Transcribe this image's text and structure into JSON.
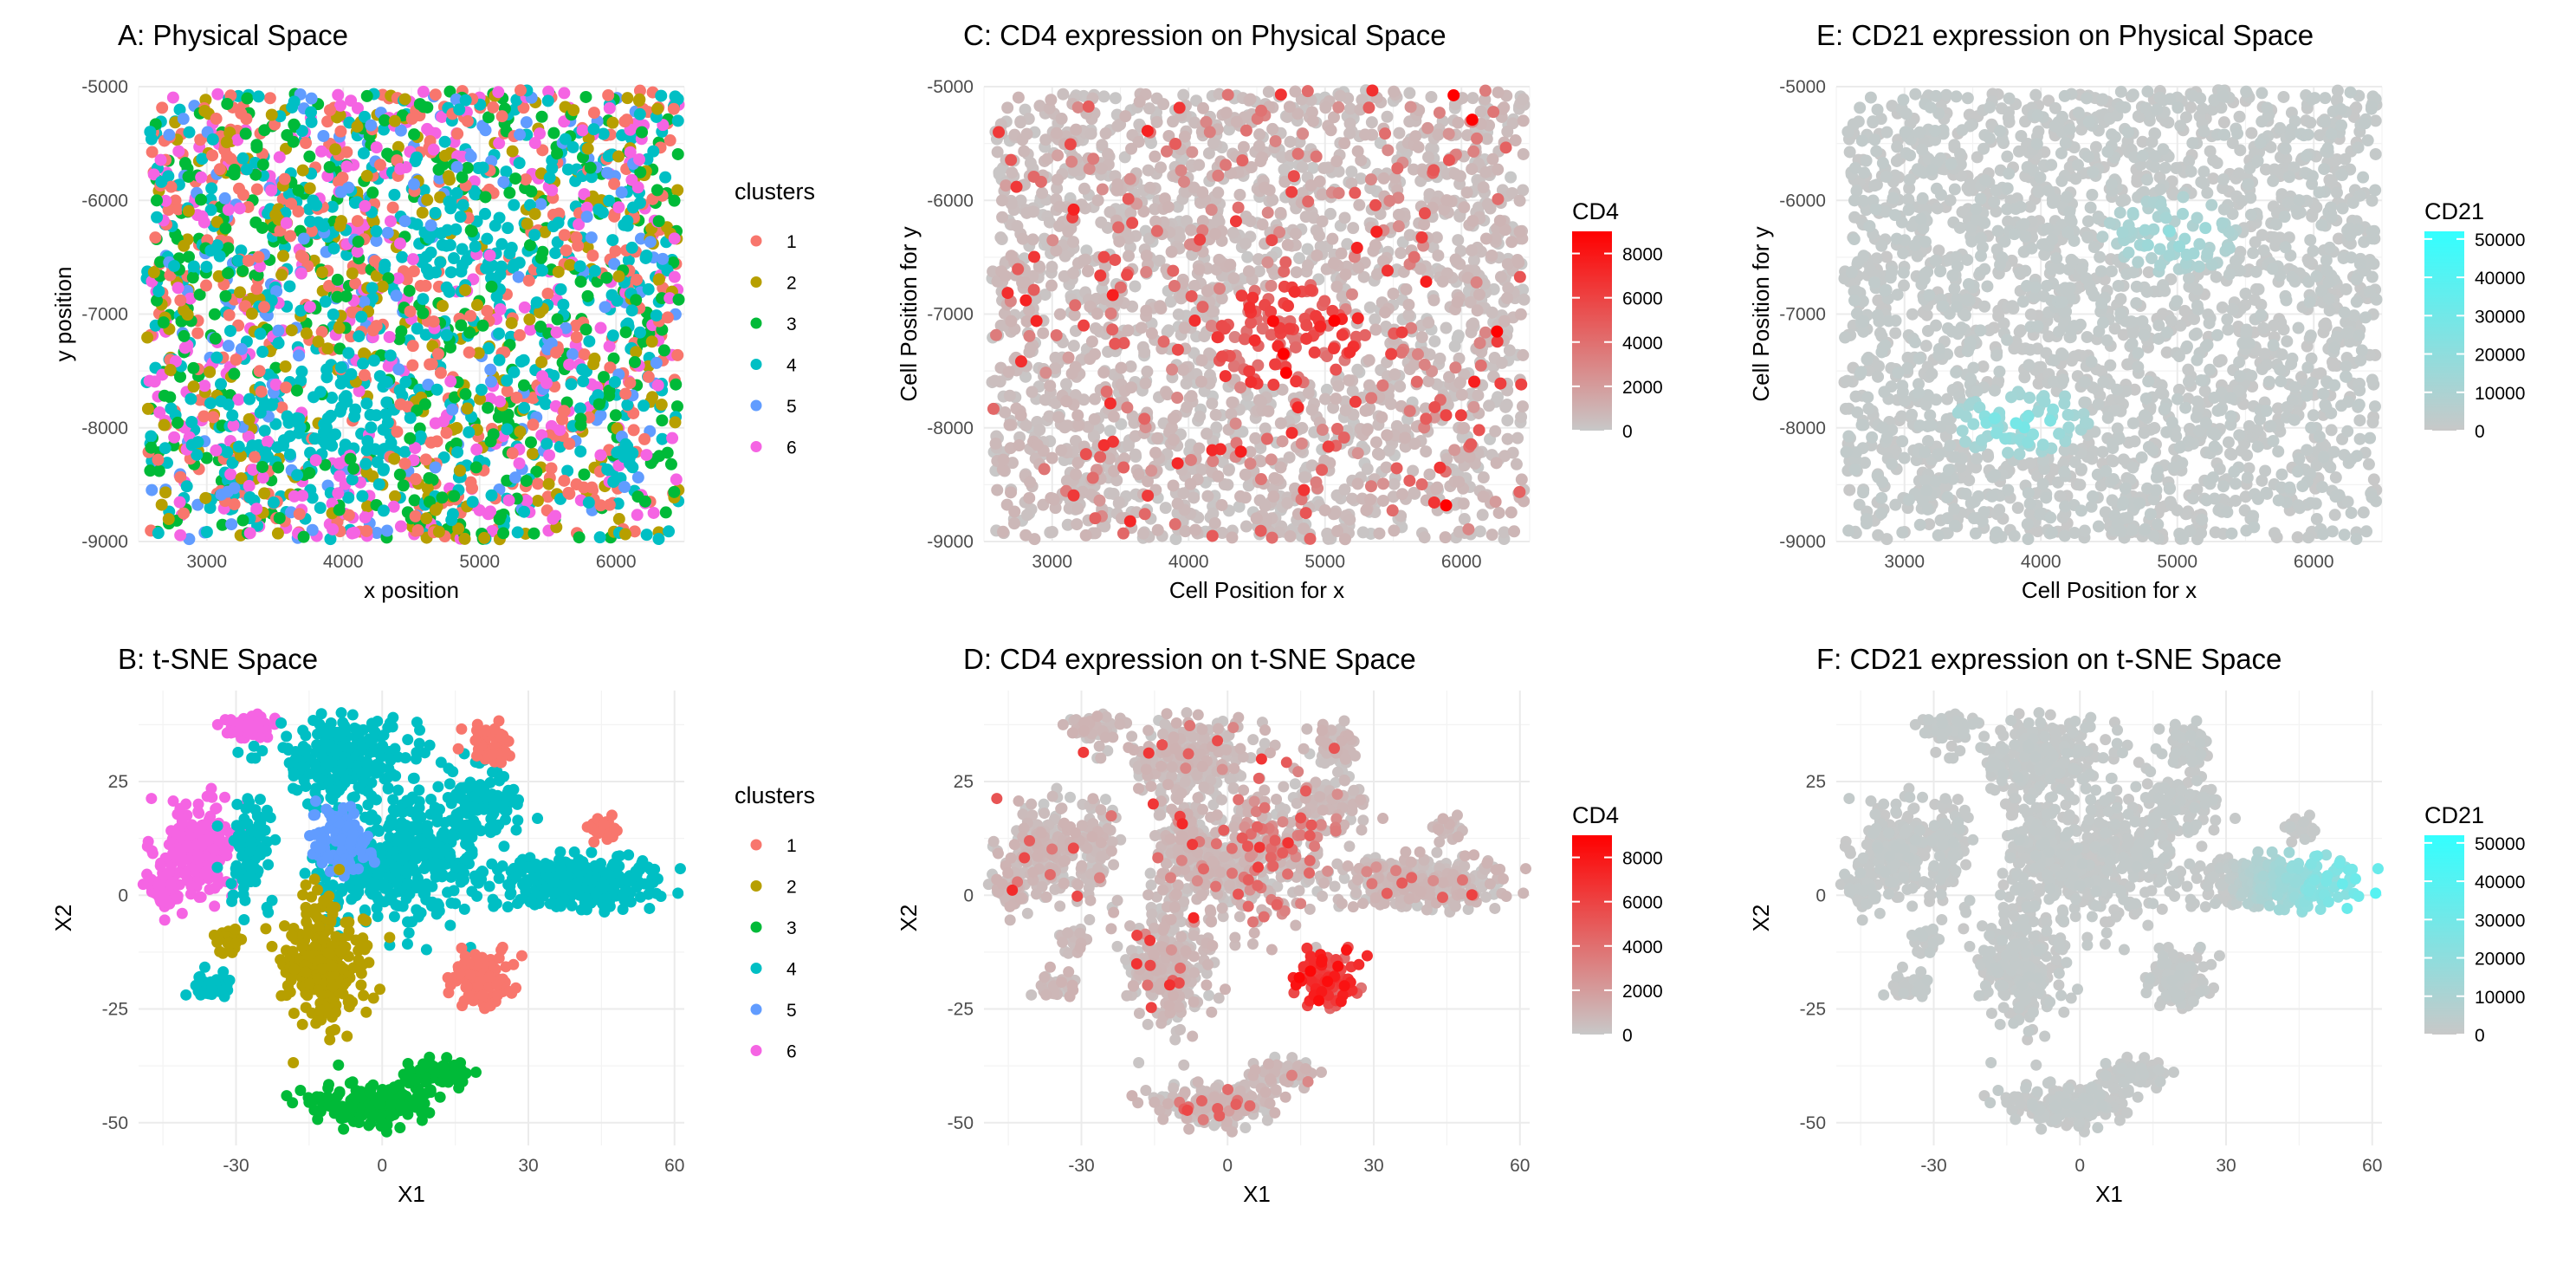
{
  "chart_data": [
    {
      "id": "A",
      "type": "scatter",
      "title": "A: Physical Space",
      "xlabel": "x position",
      "ylabel": "y position",
      "xlim": [
        2500,
        6500
      ],
      "ylim": [
        -9000,
        -5000
      ],
      "xticks": [
        3000,
        4000,
        5000,
        6000
      ],
      "yticks": [
        -9000,
        -8000,
        -7000,
        -6000,
        -5000
      ],
      "point_generator": "physical",
      "color_by": "clusters",
      "legend": {
        "title": "clusters",
        "placement": "right",
        "entries": [
          {
            "label": "1",
            "color": "#F8766D"
          },
          {
            "label": "2",
            "color": "#B79F00"
          },
          {
            "label": "3",
            "color": "#00BA38"
          },
          {
            "label": "4",
            "color": "#00BFC4"
          },
          {
            "label": "5",
            "color": "#619CFF"
          },
          {
            "label": "6",
            "color": "#F564E3"
          }
        ]
      }
    },
    {
      "id": "C",
      "type": "scatter",
      "title": "C: CD4 expression on Physical Space",
      "xlabel": "Cell Position for x",
      "ylabel": "Cell Position for y",
      "xlim": [
        2500,
        6500
      ],
      "ylim": [
        -9000,
        -5000
      ],
      "xticks": [
        3000,
        4000,
        5000,
        6000
      ],
      "yticks": [
        -9000,
        -8000,
        -7000,
        -6000,
        -5000
      ],
      "point_generator": "physical",
      "color_by": "CD4",
      "legend": {
        "title": "CD4",
        "placement": "right",
        "low": "#C8C8C8",
        "high": "#FF0000",
        "range": [
          0,
          9000
        ],
        "ticks": [
          0,
          2000,
          4000,
          6000,
          8000
        ]
      }
    },
    {
      "id": "E",
      "type": "scatter",
      "title": "E: CD21 expression on Physical Space",
      "xlabel": "Cell Position for x",
      "ylabel": "Cell Position for y",
      "xlim": [
        2500,
        6500
      ],
      "ylim": [
        -9000,
        -5000
      ],
      "xticks": [
        3000,
        4000,
        5000,
        6000
      ],
      "yticks": [
        -9000,
        -8000,
        -7000,
        -6000,
        -5000
      ],
      "point_generator": "physical",
      "color_by": "CD21",
      "legend": {
        "title": "CD21",
        "placement": "right",
        "low": "#C8C8C8",
        "high": "#33FFFF",
        "range": [
          0,
          52000
        ],
        "ticks": [
          0,
          10000,
          20000,
          30000,
          40000,
          50000
        ]
      }
    },
    {
      "id": "B",
      "type": "scatter",
      "title": "B: t-SNE Space",
      "xlabel": "X1",
      "ylabel": "X2",
      "xlim": [
        -50,
        62
      ],
      "ylim": [
        -55,
        45
      ],
      "xticks": [
        -30,
        0,
        30,
        60
      ],
      "yticks": [
        -50,
        -25,
        0,
        25
      ],
      "point_generator": "tsne",
      "color_by": "clusters",
      "legend": {
        "title": "clusters",
        "placement": "right",
        "entries": [
          {
            "label": "1",
            "color": "#F8766D"
          },
          {
            "label": "2",
            "color": "#B79F00"
          },
          {
            "label": "3",
            "color": "#00BA38"
          },
          {
            "label": "4",
            "color": "#00BFC4"
          },
          {
            "label": "5",
            "color": "#619CFF"
          },
          {
            "label": "6",
            "color": "#F564E3"
          }
        ]
      }
    },
    {
      "id": "D",
      "type": "scatter",
      "title": "D: CD4 expression on t-SNE Space",
      "xlabel": "X1",
      "ylabel": "X2",
      "xlim": [
        -50,
        62
      ],
      "ylim": [
        -55,
        45
      ],
      "xticks": [
        -30,
        0,
        30,
        60
      ],
      "yticks": [
        -50,
        -25,
        0,
        25
      ],
      "point_generator": "tsne",
      "color_by": "CD4",
      "legend": {
        "title": "CD4",
        "placement": "right",
        "low": "#C8C8C8",
        "high": "#FF0000",
        "range": [
          0,
          9000
        ],
        "ticks": [
          0,
          2000,
          4000,
          6000,
          8000
        ]
      }
    },
    {
      "id": "F",
      "type": "scatter",
      "title": "F: CD21 expression on t-SNE Space",
      "xlabel": "X1",
      "ylabel": "X2",
      "xlim": [
        -50,
        62
      ],
      "ylim": [
        -55,
        45
      ],
      "xticks": [
        -30,
        0,
        30,
        60
      ],
      "yticks": [
        -50,
        -25,
        0,
        25
      ],
      "point_generator": "tsne",
      "color_by": "CD21",
      "legend": {
        "title": "CD21",
        "placement": "right",
        "low": "#C8C8C8",
        "high": "#33FFFF",
        "range": [
          0,
          52000
        ],
        "ticks": [
          0,
          10000,
          20000,
          30000,
          40000,
          50000
        ]
      }
    }
  ],
  "tsne_clusters": [
    {
      "cluster": "6",
      "center": [
        -38,
        10
      ],
      "spread": [
        5,
        7
      ],
      "n": 200
    },
    {
      "cluster": "6",
      "center": [
        -27,
        37
      ],
      "spread": [
        3.5,
        1.5
      ],
      "n": 60
    },
    {
      "cluster": "6",
      "center": [
        -45,
        1
      ],
      "spread": [
        3,
        2.5
      ],
      "n": 50
    },
    {
      "cluster": "4",
      "center": [
        -8,
        30
      ],
      "spread": [
        9,
        6
      ],
      "n": 260
    },
    {
      "cluster": "4",
      "center": [
        -27,
        10
      ],
      "spread": [
        3,
        8
      ],
      "n": 90
    },
    {
      "cluster": "4",
      "center": [
        8,
        10
      ],
      "spread": [
        8,
        10
      ],
      "n": 260
    },
    {
      "cluster": "4",
      "center": [
        40,
        3
      ],
      "spread": [
        12,
        4
      ],
      "n": 300
    },
    {
      "cluster": "4",
      "center": [
        20,
        20
      ],
      "spread": [
        5,
        5
      ],
      "n": 90
    },
    {
      "cluster": "4",
      "center": [
        -35,
        -20
      ],
      "spread": [
        3,
        2
      ],
      "n": 30
    },
    {
      "cluster": "4",
      "center": [
        -5,
        5
      ],
      "spread": [
        6,
        6
      ],
      "n": 120
    },
    {
      "cluster": "5",
      "center": [
        -8,
        12
      ],
      "spread": [
        4,
        5
      ],
      "n": 110
    },
    {
      "cluster": "1",
      "center": [
        20,
        -18
      ],
      "spread": [
        4,
        4
      ],
      "n": 110
    },
    {
      "cluster": "1",
      "center": [
        22,
        33
      ],
      "spread": [
        3,
        3
      ],
      "n": 55
    },
    {
      "cluster": "1",
      "center": [
        45,
        15
      ],
      "spread": [
        3,
        2
      ],
      "n": 20
    },
    {
      "cluster": "2",
      "center": [
        -12,
        -15
      ],
      "spread": [
        6,
        9
      ],
      "n": 260
    },
    {
      "cluster": "2",
      "center": [
        -32,
        -10
      ],
      "spread": [
        2,
        2
      ],
      "n": 20
    },
    {
      "cluster": "3",
      "center": [
        -2,
        -46
      ],
      "spread": [
        8,
        3
      ],
      "n": 200
    },
    {
      "cluster": "3",
      "center": [
        12,
        -39
      ],
      "spread": [
        5,
        2
      ],
      "n": 60
    }
  ]
}
